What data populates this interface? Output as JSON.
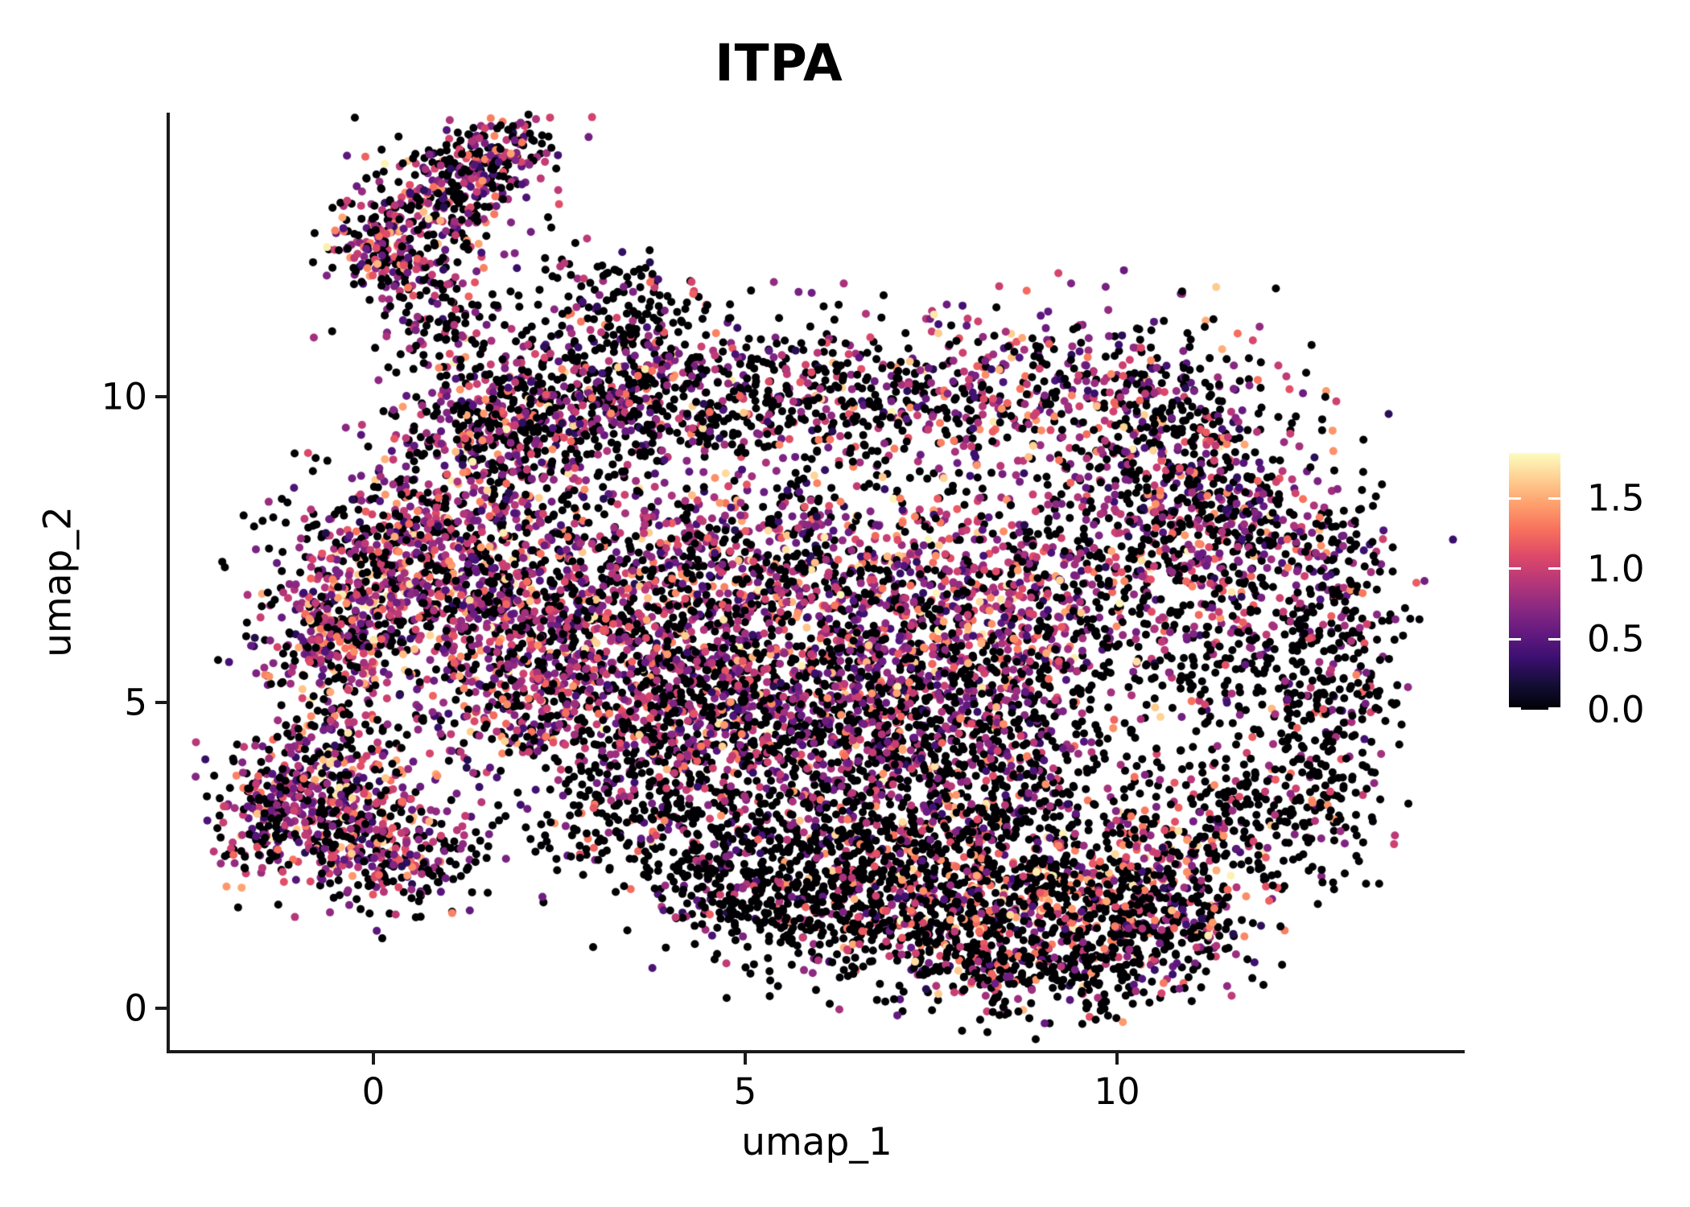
{
  "title": "ITPA",
  "chart_data": {
    "type": "scatter",
    "title": "ITPA",
    "xlabel": "umap_1",
    "ylabel": "umap_2",
    "x_ticks": [
      0,
      5,
      10
    ],
    "y_ticks": [
      0,
      5,
      10
    ],
    "x_tick_labels": [
      "0",
      "5",
      "10"
    ],
    "y_tick_labels": [
      "0",
      "5",
      "10"
    ],
    "xlim": [
      -2.75,
      14.68
    ],
    "ylim": [
      -0.7,
      14.64
    ],
    "grid": false,
    "background": "#ffffff",
    "point_radius_px": 5,
    "seed": 1234567,
    "count_scale": 0.78,
    "colorbar": {
      "position": "right",
      "colormap": "magma",
      "range": [
        0,
        1.82
      ],
      "ticks": [
        {
          "value": 1.5,
          "label": "1.5"
        },
        {
          "value": 1.0,
          "label": "1.0"
        },
        {
          "value": 0.5,
          "label": "0.5"
        },
        {
          "value": 0.0,
          "label": "0.0"
        }
      ]
    },
    "colormap_stops": [
      [
        0.0,
        "#000004"
      ],
      [
        0.1,
        "#140e36"
      ],
      [
        0.2,
        "#3b0f70"
      ],
      [
        0.3,
        "#641a80"
      ],
      [
        0.4,
        "#8c2981"
      ],
      [
        0.5,
        "#b73779"
      ],
      [
        0.6,
        "#de4968"
      ],
      [
        0.7,
        "#f7705c"
      ],
      [
        0.8,
        "#fe9f6d"
      ],
      [
        0.9,
        "#fecf92"
      ],
      [
        1.0,
        "#fcfdbf"
      ]
    ],
    "expression_profiles": {
      "low": {
        "zero": 0.8,
        "bands": [
          [
            0.05,
            0.25,
            0.55
          ],
          [
            0.11,
            0.55,
            1.05
          ],
          [
            0.035,
            1.05,
            1.45
          ],
          [
            0.005,
            1.45,
            1.8
          ]
        ]
      },
      "lowmid": {
        "zero": 0.63,
        "bands": [
          [
            0.08,
            0.25,
            0.55
          ],
          [
            0.22,
            0.55,
            1.05
          ],
          [
            0.06,
            1.05,
            1.45
          ],
          [
            0.01,
            1.45,
            1.8
          ]
        ]
      },
      "mid": {
        "zero": 0.47,
        "bands": [
          [
            0.09,
            0.25,
            0.55
          ],
          [
            0.32,
            0.55,
            1.05
          ],
          [
            0.09,
            1.05,
            1.45
          ],
          [
            0.03,
            1.45,
            1.8
          ]
        ]
      },
      "midhigh": {
        "zero": 0.4,
        "bands": [
          [
            0.09,
            0.25,
            0.55
          ],
          [
            0.36,
            0.55,
            1.05
          ],
          [
            0.11,
            1.05,
            1.45
          ],
          [
            0.04,
            1.45,
            1.8
          ]
        ]
      },
      "high": {
        "zero": 0.33,
        "bands": [
          [
            0.08,
            0.25,
            0.55
          ],
          [
            0.4,
            0.55,
            1.05
          ],
          [
            0.13,
            1.05,
            1.45
          ],
          [
            0.06,
            1.45,
            1.8
          ]
        ]
      },
      "pinkblack": {
        "zero": 0.58,
        "bands": [
          [
            0.03,
            0.25,
            0.55
          ],
          [
            0.14,
            0.55,
            1.05
          ],
          [
            0.19,
            1.05,
            1.45
          ],
          [
            0.06,
            1.45,
            1.8
          ]
        ]
      }
    },
    "clusters": [
      {
        "name": "tip-core-low",
        "n": 240,
        "x": 0.1,
        "y": 12.45,
        "sx": 0.32,
        "sy": 0.45,
        "rot": 35,
        "profile": "midhigh"
      },
      {
        "name": "tip-core-mid",
        "n": 330,
        "x": 0.9,
        "y": 13.25,
        "sx": 0.5,
        "sy": 0.5,
        "rot": 35,
        "profile": "mid"
      },
      {
        "name": "tip-core-top",
        "n": 200,
        "x": 1.65,
        "y": 14.0,
        "sx": 0.42,
        "sy": 0.32,
        "rot": 30,
        "profile": "mid"
      },
      {
        "name": "tip-trail",
        "n": 150,
        "x": 1.0,
        "y": 11.3,
        "sx": 0.5,
        "sy": 0.6,
        "rot": 0,
        "profile": "lowmid"
      },
      {
        "name": "tip-streak-right",
        "n": 160,
        "x": 3.3,
        "y": 11.6,
        "sx": 0.75,
        "sy": 0.4,
        "rot": -20,
        "profile": "lowmid"
      },
      {
        "name": "bridge-sparse",
        "n": 130,
        "x": 2.9,
        "y": 9.9,
        "sx": 0.8,
        "sy": 0.55,
        "rot": 0,
        "profile": "low"
      },
      {
        "name": "bridge-clump",
        "n": 140,
        "x": 1.9,
        "y": 9.6,
        "sx": 0.55,
        "sy": 0.5,
        "rot": 0,
        "profile": "lowmid"
      },
      {
        "name": "arm-left-upper",
        "n": 430,
        "x": 0.1,
        "y": 7.4,
        "sx": 0.55,
        "sy": 0.75,
        "rot": 0,
        "profile": "high"
      },
      {
        "name": "arm-left-bulge",
        "n": 360,
        "x": -0.55,
        "y": 6.0,
        "sx": 0.5,
        "sy": 0.55,
        "rot": 0,
        "profile": "high"
      },
      {
        "name": "shoulder-topleft",
        "n": 520,
        "x": 1.6,
        "y": 9.3,
        "sx": 0.75,
        "sy": 0.8,
        "rot": 0,
        "profile": "midhigh"
      },
      {
        "name": "top-band-1",
        "n": 480,
        "x": 3.7,
        "y": 10.1,
        "sx": 0.95,
        "sy": 0.65,
        "rot": 0,
        "profile": "mid"
      },
      {
        "name": "top-band-2",
        "n": 450,
        "x": 6.0,
        "y": 9.9,
        "sx": 1.25,
        "sy": 0.55,
        "rot": 0,
        "profile": "lowmid"
      },
      {
        "name": "top-band-3",
        "n": 580,
        "x": 9.0,
        "y": 10.1,
        "sx": 1.5,
        "sy": 0.7,
        "rot": 0,
        "profile": "midhigh"
      },
      {
        "name": "top-band-right",
        "n": 340,
        "x": 10.9,
        "y": 9.2,
        "sx": 0.85,
        "sy": 0.7,
        "rot": -25,
        "profile": "lowmid"
      },
      {
        "name": "mid-band-1",
        "n": 520,
        "x": 1.1,
        "y": 7.0,
        "sx": 0.75,
        "sy": 0.85,
        "rot": 0,
        "profile": "high"
      },
      {
        "name": "mid-band-2",
        "n": 640,
        "x": 2.8,
        "y": 6.9,
        "sx": 1.0,
        "sy": 0.95,
        "rot": 0,
        "profile": "midhigh"
      },
      {
        "name": "mid-band-3",
        "n": 680,
        "x": 4.7,
        "y": 7.0,
        "sx": 1.2,
        "sy": 0.95,
        "rot": 0,
        "profile": "mid"
      },
      {
        "name": "mid-band-4",
        "n": 720,
        "x": 6.7,
        "y": 6.9,
        "sx": 1.2,
        "sy": 1.0,
        "rot": 0,
        "profile": "high"
      },
      {
        "name": "mid-band-5",
        "n": 620,
        "x": 8.6,
        "y": 6.6,
        "sx": 1.1,
        "sy": 1.0,
        "rot": 0,
        "profile": "midhigh"
      },
      {
        "name": "mid-low-1",
        "n": 520,
        "x": 2.0,
        "y": 5.3,
        "sx": 1.0,
        "sy": 0.75,
        "rot": 0,
        "profile": "high"
      },
      {
        "name": "mid-low-2",
        "n": 520,
        "x": 4.1,
        "y": 5.2,
        "sx": 1.1,
        "sy": 0.75,
        "rot": 0,
        "profile": "mid"
      },
      {
        "name": "mid-low-3",
        "n": 500,
        "x": 6.1,
        "y": 5.1,
        "sx": 1.1,
        "sy": 0.75,
        "rot": 0,
        "profile": "midhigh"
      },
      {
        "name": "mid-low-4",
        "n": 480,
        "x": 8.0,
        "y": 4.9,
        "sx": 1.0,
        "sy": 0.85,
        "rot": 0,
        "profile": "mid"
      },
      {
        "name": "right-lobe-top1",
        "n": 360,
        "x": 10.4,
        "y": 7.8,
        "sx": 0.8,
        "sy": 0.8,
        "rot": 0,
        "profile": "mid"
      },
      {
        "name": "right-lobe-top2",
        "n": 330,
        "x": 11.8,
        "y": 7.8,
        "sx": 0.9,
        "sy": 0.6,
        "rot": -15,
        "profile": "mid"
      },
      {
        "name": "right-edge-upper",
        "n": 240,
        "x": 12.8,
        "y": 6.4,
        "sx": 0.5,
        "sy": 0.9,
        "rot": -10,
        "profile": "lowmid"
      },
      {
        "name": "right-edge-lower",
        "n": 150,
        "x": 13.0,
        "y": 4.9,
        "sx": 0.4,
        "sy": 0.7,
        "rot": 0,
        "profile": "low"
      },
      {
        "name": "right-inner",
        "n": 220,
        "x": 11.2,
        "y": 6.0,
        "sx": 0.8,
        "sy": 0.75,
        "rot": 0,
        "profile": "lowmid"
      },
      {
        "name": "right-hole-sparse",
        "n": 110,
        "x": 11.9,
        "y": 4.4,
        "sx": 0.8,
        "sy": 0.7,
        "rot": 0,
        "profile": "low"
      },
      {
        "name": "right-bottom-edge",
        "n": 200,
        "x": 12.3,
        "y": 3.2,
        "sx": 0.6,
        "sy": 0.6,
        "rot": 30,
        "profile": "low"
      },
      {
        "name": "right-bottom-mix",
        "n": 260,
        "x": 11.0,
        "y": 2.6,
        "sx": 0.8,
        "sy": 0.55,
        "rot": 20,
        "profile": "pinkblack"
      },
      {
        "name": "lower-mid-1",
        "n": 450,
        "x": 4.6,
        "y": 4.1,
        "sx": 1.1,
        "sy": 0.75,
        "rot": 0,
        "profile": "mid"
      },
      {
        "name": "lower-mid-2",
        "n": 430,
        "x": 6.5,
        "y": 3.9,
        "sx": 1.1,
        "sy": 0.8,
        "rot": 0,
        "profile": "lowmid"
      },
      {
        "name": "lower-mid-3",
        "n": 420,
        "x": 8.4,
        "y": 3.7,
        "sx": 1.0,
        "sy": 0.85,
        "rot": 0,
        "profile": "lowmid"
      },
      {
        "name": "bay-sparse",
        "n": 170,
        "x": 3.1,
        "y": 3.3,
        "sx": 0.8,
        "sy": 0.65,
        "rot": 0,
        "profile": "low"
      },
      {
        "name": "black-band-1",
        "n": 360,
        "x": 5.4,
        "y": 2.7,
        "sx": 1.3,
        "sy": 0.55,
        "rot": -10,
        "profile": "low"
      },
      {
        "name": "black-band-2",
        "n": 360,
        "x": 7.4,
        "y": 2.5,
        "sx": 1.0,
        "sy": 0.6,
        "rot": 0,
        "profile": "pinkblack"
      },
      {
        "name": "bottom-mass-1",
        "n": 460,
        "x": 6.3,
        "y": 1.6,
        "sx": 1.1,
        "sy": 0.6,
        "rot": 0,
        "profile": "low"
      },
      {
        "name": "bottom-mass-2",
        "n": 600,
        "x": 8.3,
        "y": 1.4,
        "sx": 1.2,
        "sy": 0.65,
        "rot": 0,
        "profile": "pinkblack"
      },
      {
        "name": "bottom-mass-3",
        "n": 430,
        "x": 9.9,
        "y": 1.9,
        "sx": 0.9,
        "sy": 0.7,
        "rot": 0,
        "profile": "pinkblack"
      },
      {
        "name": "bottom-tip",
        "n": 300,
        "x": 8.9,
        "y": 0.7,
        "sx": 1.0,
        "sy": 0.45,
        "rot": 0,
        "profile": "low"
      },
      {
        "name": "bottom-right-edge",
        "n": 200,
        "x": 10.8,
        "y": 1.3,
        "sx": 0.6,
        "sy": 0.5,
        "rot": 20,
        "profile": "lowmid"
      },
      {
        "name": "bottom-left-strand",
        "n": 200,
        "x": 4.8,
        "y": 2.0,
        "sx": 0.8,
        "sy": 0.45,
        "rot": -25,
        "profile": "low"
      },
      {
        "name": "left-cluster-core",
        "n": 430,
        "x": -0.75,
        "y": 3.6,
        "sx": 0.6,
        "sy": 0.55,
        "rot": 0,
        "profile": "high"
      },
      {
        "name": "left-cluster-low",
        "n": 310,
        "x": -0.1,
        "y": 2.7,
        "sx": 0.6,
        "sy": 0.5,
        "rot": 0,
        "profile": "midhigh"
      },
      {
        "name": "left-cluster-west",
        "n": 160,
        "x": -1.45,
        "y": 2.9,
        "sx": 0.35,
        "sy": 0.5,
        "rot": 0,
        "profile": "mid"
      },
      {
        "name": "left-cluster-top",
        "n": 60,
        "x": -0.35,
        "y": 4.6,
        "sx": 0.7,
        "sy": 0.3,
        "rot": 0,
        "profile": "lowmid"
      },
      {
        "name": "left-cluster-tail",
        "n": 90,
        "x": 0.8,
        "y": 2.3,
        "sx": 0.45,
        "sy": 0.4,
        "rot": 0,
        "profile": "lowmid"
      },
      {
        "name": "broad-scatter",
        "n": 110,
        "x": 6.0,
        "y": 6.0,
        "sx": 4.2,
        "sy": 3.0,
        "rot": 0,
        "profile": "low"
      },
      {
        "name": "west-outliers",
        "n": 30,
        "x": -1.2,
        "y": 7.3,
        "sx": 0.5,
        "sy": 1.0,
        "rot": 0,
        "profile": "low"
      }
    ]
  }
}
